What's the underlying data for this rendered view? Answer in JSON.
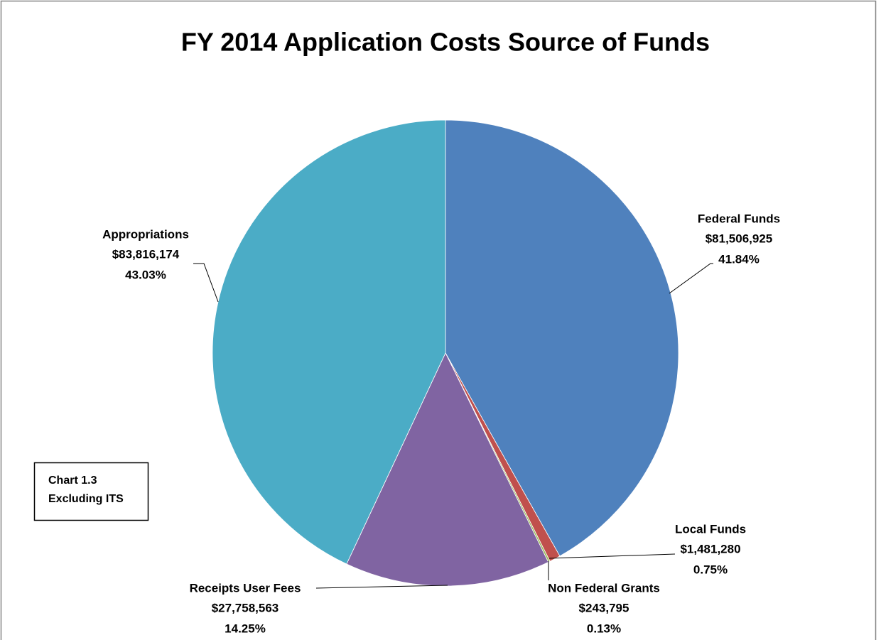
{
  "chart_data": {
    "type": "pie",
    "title": "FY 2014 Application Costs Source of Funds",
    "categories": [
      "Federal Funds",
      "Local Funds",
      "Non Federal Grants",
      "Receipts User Fees",
      "Appropriations"
    ],
    "values": [
      81506925,
      1481280,
      243795,
      27758563,
      83816174
    ],
    "value_labels": [
      "$81,506,925",
      "$1,481,280",
      "$243,795",
      "$27,758,563",
      "$83,816,174"
    ],
    "percents": [
      41.84,
      0.75,
      0.13,
      14.25,
      43.03
    ],
    "percent_labels": [
      "41.84%",
      "0.75%",
      "0.13%",
      "14.25%",
      "43.03%"
    ],
    "colors": [
      "#4f81bd",
      "#c0504d",
      "#9bbb59",
      "#8064a2",
      "#4bacc6"
    ],
    "annotation": [
      "Chart 1.3",
      "Excluding ITS"
    ]
  }
}
